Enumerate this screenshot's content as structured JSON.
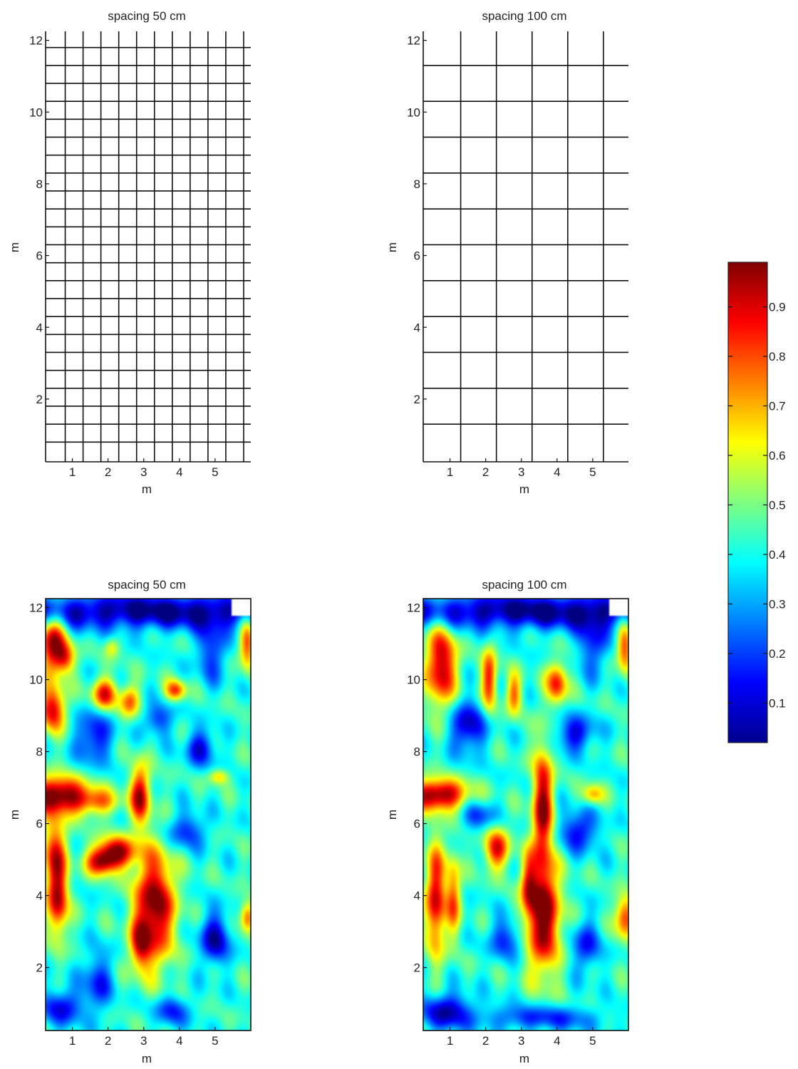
{
  "chart_data": [
    {
      "type": "grid",
      "title": "spacing 50 cm",
      "xlabel": "m",
      "ylabel": "m",
      "xlim": [
        0.25,
        6.0
      ],
      "ylim": [
        0.25,
        12.25
      ],
      "xticks": [
        1,
        2,
        3,
        4,
        5
      ],
      "yticks": [
        2,
        4,
        6,
        8,
        10,
        12
      ],
      "grid_spacing_m": 0.5,
      "vertical_lines_x": [
        0.8,
        1.3,
        1.8,
        2.3,
        2.8,
        3.3,
        3.8,
        4.3,
        4.8,
        5.3,
        5.8
      ],
      "horizontal_lines_y": [
        0.8,
        1.3,
        1.8,
        2.3,
        2.8,
        3.3,
        3.8,
        4.3,
        4.8,
        5.3,
        5.8,
        6.3,
        6.8,
        7.3,
        7.8,
        8.3,
        8.8,
        9.3,
        9.8,
        10.3,
        10.8,
        11.3,
        11.8
      ]
    },
    {
      "type": "grid",
      "title": "spacing 100 cm",
      "xlabel": "m",
      "ylabel": "m",
      "xlim": [
        0.25,
        6.0
      ],
      "ylim": [
        0.25,
        12.25
      ],
      "xticks": [
        1,
        2,
        3,
        4,
        5
      ],
      "yticks": [
        2,
        4,
        6,
        8,
        10,
        12
      ],
      "grid_spacing_m": 1.0,
      "vertical_lines_x": [
        1.3,
        2.3,
        3.3,
        4.3,
        5.3
      ],
      "horizontal_lines_y": [
        1.3,
        2.3,
        3.3,
        4.3,
        5.3,
        6.3,
        7.3,
        8.3,
        9.3,
        10.3,
        11.3
      ]
    },
    {
      "type": "heatmap",
      "title": "spacing 50 cm",
      "xlabel": "m",
      "ylabel": "m",
      "xlim": [
        0.25,
        6.0
      ],
      "ylim": [
        0.25,
        12.25
      ],
      "xticks": [
        1,
        2,
        3,
        4,
        5
      ],
      "yticks": [
        2,
        4,
        6,
        8,
        10,
        12
      ],
      "value_range": [
        0.02,
        0.99
      ],
      "background_value": 0.42,
      "features": [
        {
          "x": 0.45,
          "y": 11.0,
          "sx": 0.25,
          "sy": 0.55,
          "v": 0.55
        },
        {
          "x": 0.8,
          "y": 10.6,
          "sx": 0.2,
          "sy": 0.3,
          "v": 0.35
        },
        {
          "x": 0.45,
          "y": 9.2,
          "sx": 0.25,
          "sy": 0.45,
          "v": 0.5
        },
        {
          "x": 0.6,
          "y": 6.8,
          "sx": 0.6,
          "sy": 0.35,
          "v": 0.6
        },
        {
          "x": 1.7,
          "y": 6.6,
          "sx": 0.45,
          "sy": 0.25,
          "v": 0.3
        },
        {
          "x": 0.5,
          "y": 5.2,
          "sx": 0.25,
          "sy": 0.8,
          "v": 0.4
        },
        {
          "x": 0.6,
          "y": 3.8,
          "sx": 0.2,
          "sy": 0.7,
          "v": 0.45
        },
        {
          "x": 2.2,
          "y": 5.2,
          "sx": 0.4,
          "sy": 0.3,
          "v": 0.55
        },
        {
          "x": 1.8,
          "y": 4.9,
          "sx": 0.3,
          "sy": 0.25,
          "v": 0.4
        },
        {
          "x": 2.9,
          "y": 6.8,
          "sx": 0.2,
          "sy": 0.6,
          "v": 0.5
        },
        {
          "x": 3.3,
          "y": 3.7,
          "sx": 0.4,
          "sy": 1.1,
          "v": 0.6
        },
        {
          "x": 2.9,
          "y": 2.6,
          "sx": 0.2,
          "sy": 0.5,
          "v": 0.35
        },
        {
          "x": 1.9,
          "y": 9.6,
          "sx": 0.25,
          "sy": 0.3,
          "v": 0.45
        },
        {
          "x": 2.6,
          "y": 9.4,
          "sx": 0.2,
          "sy": 0.3,
          "v": 0.35
        },
        {
          "x": 3.9,
          "y": 9.7,
          "sx": 0.2,
          "sy": 0.2,
          "v": 0.4
        },
        {
          "x": 2.1,
          "y": 10.9,
          "sx": 0.15,
          "sy": 0.2,
          "v": 0.2
        },
        {
          "x": 5.9,
          "y": 11.0,
          "sx": 0.15,
          "sy": 0.5,
          "v": 0.4
        },
        {
          "x": 5.9,
          "y": 3.4,
          "sx": 0.15,
          "sy": 0.3,
          "v": 0.4
        },
        {
          "x": 5.1,
          "y": 7.3,
          "sx": 0.2,
          "sy": 0.15,
          "v": 0.25
        },
        {
          "x": 1.6,
          "y": 8.4,
          "sx": 0.35,
          "sy": 0.5,
          "v": -0.3
        },
        {
          "x": 3.4,
          "y": 8.9,
          "sx": 0.3,
          "sy": 0.3,
          "v": -0.25
        },
        {
          "x": 4.6,
          "y": 8.1,
          "sx": 0.3,
          "sy": 0.35,
          "v": -0.3
        },
        {
          "x": 4.9,
          "y": 10.8,
          "sx": 0.3,
          "sy": 0.6,
          "v": -0.25
        },
        {
          "x": 4.2,
          "y": 5.8,
          "sx": 0.4,
          "sy": 0.35,
          "v": -0.25
        },
        {
          "x": 5.0,
          "y": 2.8,
          "sx": 0.3,
          "sy": 0.5,
          "v": -0.35
        },
        {
          "x": 1.7,
          "y": 1.6,
          "sx": 0.3,
          "sy": 0.6,
          "v": -0.25
        },
        {
          "x": 0.7,
          "y": 0.9,
          "sx": 0.4,
          "sy": 0.35,
          "v": -0.3
        },
        {
          "x": 3.8,
          "y": 0.8,
          "sx": 0.35,
          "sy": 0.3,
          "v": -0.25
        },
        {
          "x": 3.3,
          "y": 11.9,
          "sx": 3.5,
          "sy": 0.35,
          "v": -0.4
        }
      ]
    },
    {
      "type": "heatmap",
      "title": "spacing 100 cm",
      "xlabel": "m",
      "ylabel": "m",
      "xlim": [
        0.25,
        6.0
      ],
      "ylim": [
        0.25,
        12.25
      ],
      "xticks": [
        1,
        2,
        3,
        4,
        5
      ],
      "yticks": [
        2,
        4,
        6,
        8,
        10,
        12
      ],
      "value_range": [
        0.02,
        0.99
      ],
      "background_value": 0.42,
      "features": [
        {
          "x": 0.75,
          "y": 10.4,
          "sx": 0.3,
          "sy": 0.8,
          "v": 0.55
        },
        {
          "x": 0.65,
          "y": 6.8,
          "sx": 0.6,
          "sy": 0.3,
          "v": 0.6
        },
        {
          "x": 0.6,
          "y": 3.9,
          "sx": 0.2,
          "sy": 1.1,
          "v": 0.5
        },
        {
          "x": 1.1,
          "y": 4.0,
          "sx": 0.15,
          "sy": 0.8,
          "v": 0.35
        },
        {
          "x": 2.3,
          "y": 5.3,
          "sx": 0.25,
          "sy": 0.4,
          "v": 0.45
        },
        {
          "x": 2.1,
          "y": 10.0,
          "sx": 0.15,
          "sy": 0.6,
          "v": 0.45
        },
        {
          "x": 2.8,
          "y": 9.6,
          "sx": 0.15,
          "sy": 0.4,
          "v": 0.35
        },
        {
          "x": 3.6,
          "y": 6.5,
          "sx": 0.2,
          "sy": 1.2,
          "v": 0.55
        },
        {
          "x": 3.6,
          "y": 3.4,
          "sx": 0.35,
          "sy": 1.1,
          "v": 0.6
        },
        {
          "x": 3.2,
          "y": 4.3,
          "sx": 0.15,
          "sy": 0.6,
          "v": 0.3
        },
        {
          "x": 4.0,
          "y": 9.9,
          "sx": 0.2,
          "sy": 0.4,
          "v": 0.45
        },
        {
          "x": 5.9,
          "y": 10.9,
          "sx": 0.15,
          "sy": 0.5,
          "v": 0.4
        },
        {
          "x": 5.9,
          "y": 3.4,
          "sx": 0.2,
          "sy": 0.4,
          "v": 0.45
        },
        {
          "x": 5.0,
          "y": 6.8,
          "sx": 0.2,
          "sy": 0.2,
          "v": 0.3
        },
        {
          "x": 1.5,
          "y": 8.7,
          "sx": 0.35,
          "sy": 0.5,
          "v": -0.35
        },
        {
          "x": 1.8,
          "y": 6.2,
          "sx": 0.3,
          "sy": 0.3,
          "v": -0.25
        },
        {
          "x": 4.5,
          "y": 8.5,
          "sx": 0.4,
          "sy": 0.35,
          "v": -0.3
        },
        {
          "x": 5.0,
          "y": 11.0,
          "sx": 0.3,
          "sy": 0.6,
          "v": -0.25
        },
        {
          "x": 4.6,
          "y": 5.8,
          "sx": 0.4,
          "sy": 0.4,
          "v": -0.3
        },
        {
          "x": 2.6,
          "y": 2.8,
          "sx": 0.35,
          "sy": 0.4,
          "v": -0.25
        },
        {
          "x": 4.8,
          "y": 2.6,
          "sx": 0.3,
          "sy": 0.5,
          "v": -0.25
        },
        {
          "x": 0.9,
          "y": 0.8,
          "sx": 0.5,
          "sy": 0.35,
          "v": -0.35
        },
        {
          "x": 3.5,
          "y": 0.6,
          "sx": 1.2,
          "sy": 0.25,
          "v": -0.25
        },
        {
          "x": 3.3,
          "y": 11.9,
          "sx": 3.5,
          "sy": 0.35,
          "v": -0.4
        }
      ]
    },
    {
      "type": "colorbar",
      "colormap": "jet",
      "range": [
        0.02,
        0.99
      ],
      "tick_values": [
        0.1,
        0.2,
        0.3,
        0.4,
        0.5,
        0.6,
        0.7,
        0.8,
        0.9
      ],
      "tick_labels": [
        "0.1",
        "0.2",
        "0.3",
        "0.4",
        "0.5",
        "0.6",
        "0.7",
        "0.8",
        "0.9"
      ]
    }
  ]
}
